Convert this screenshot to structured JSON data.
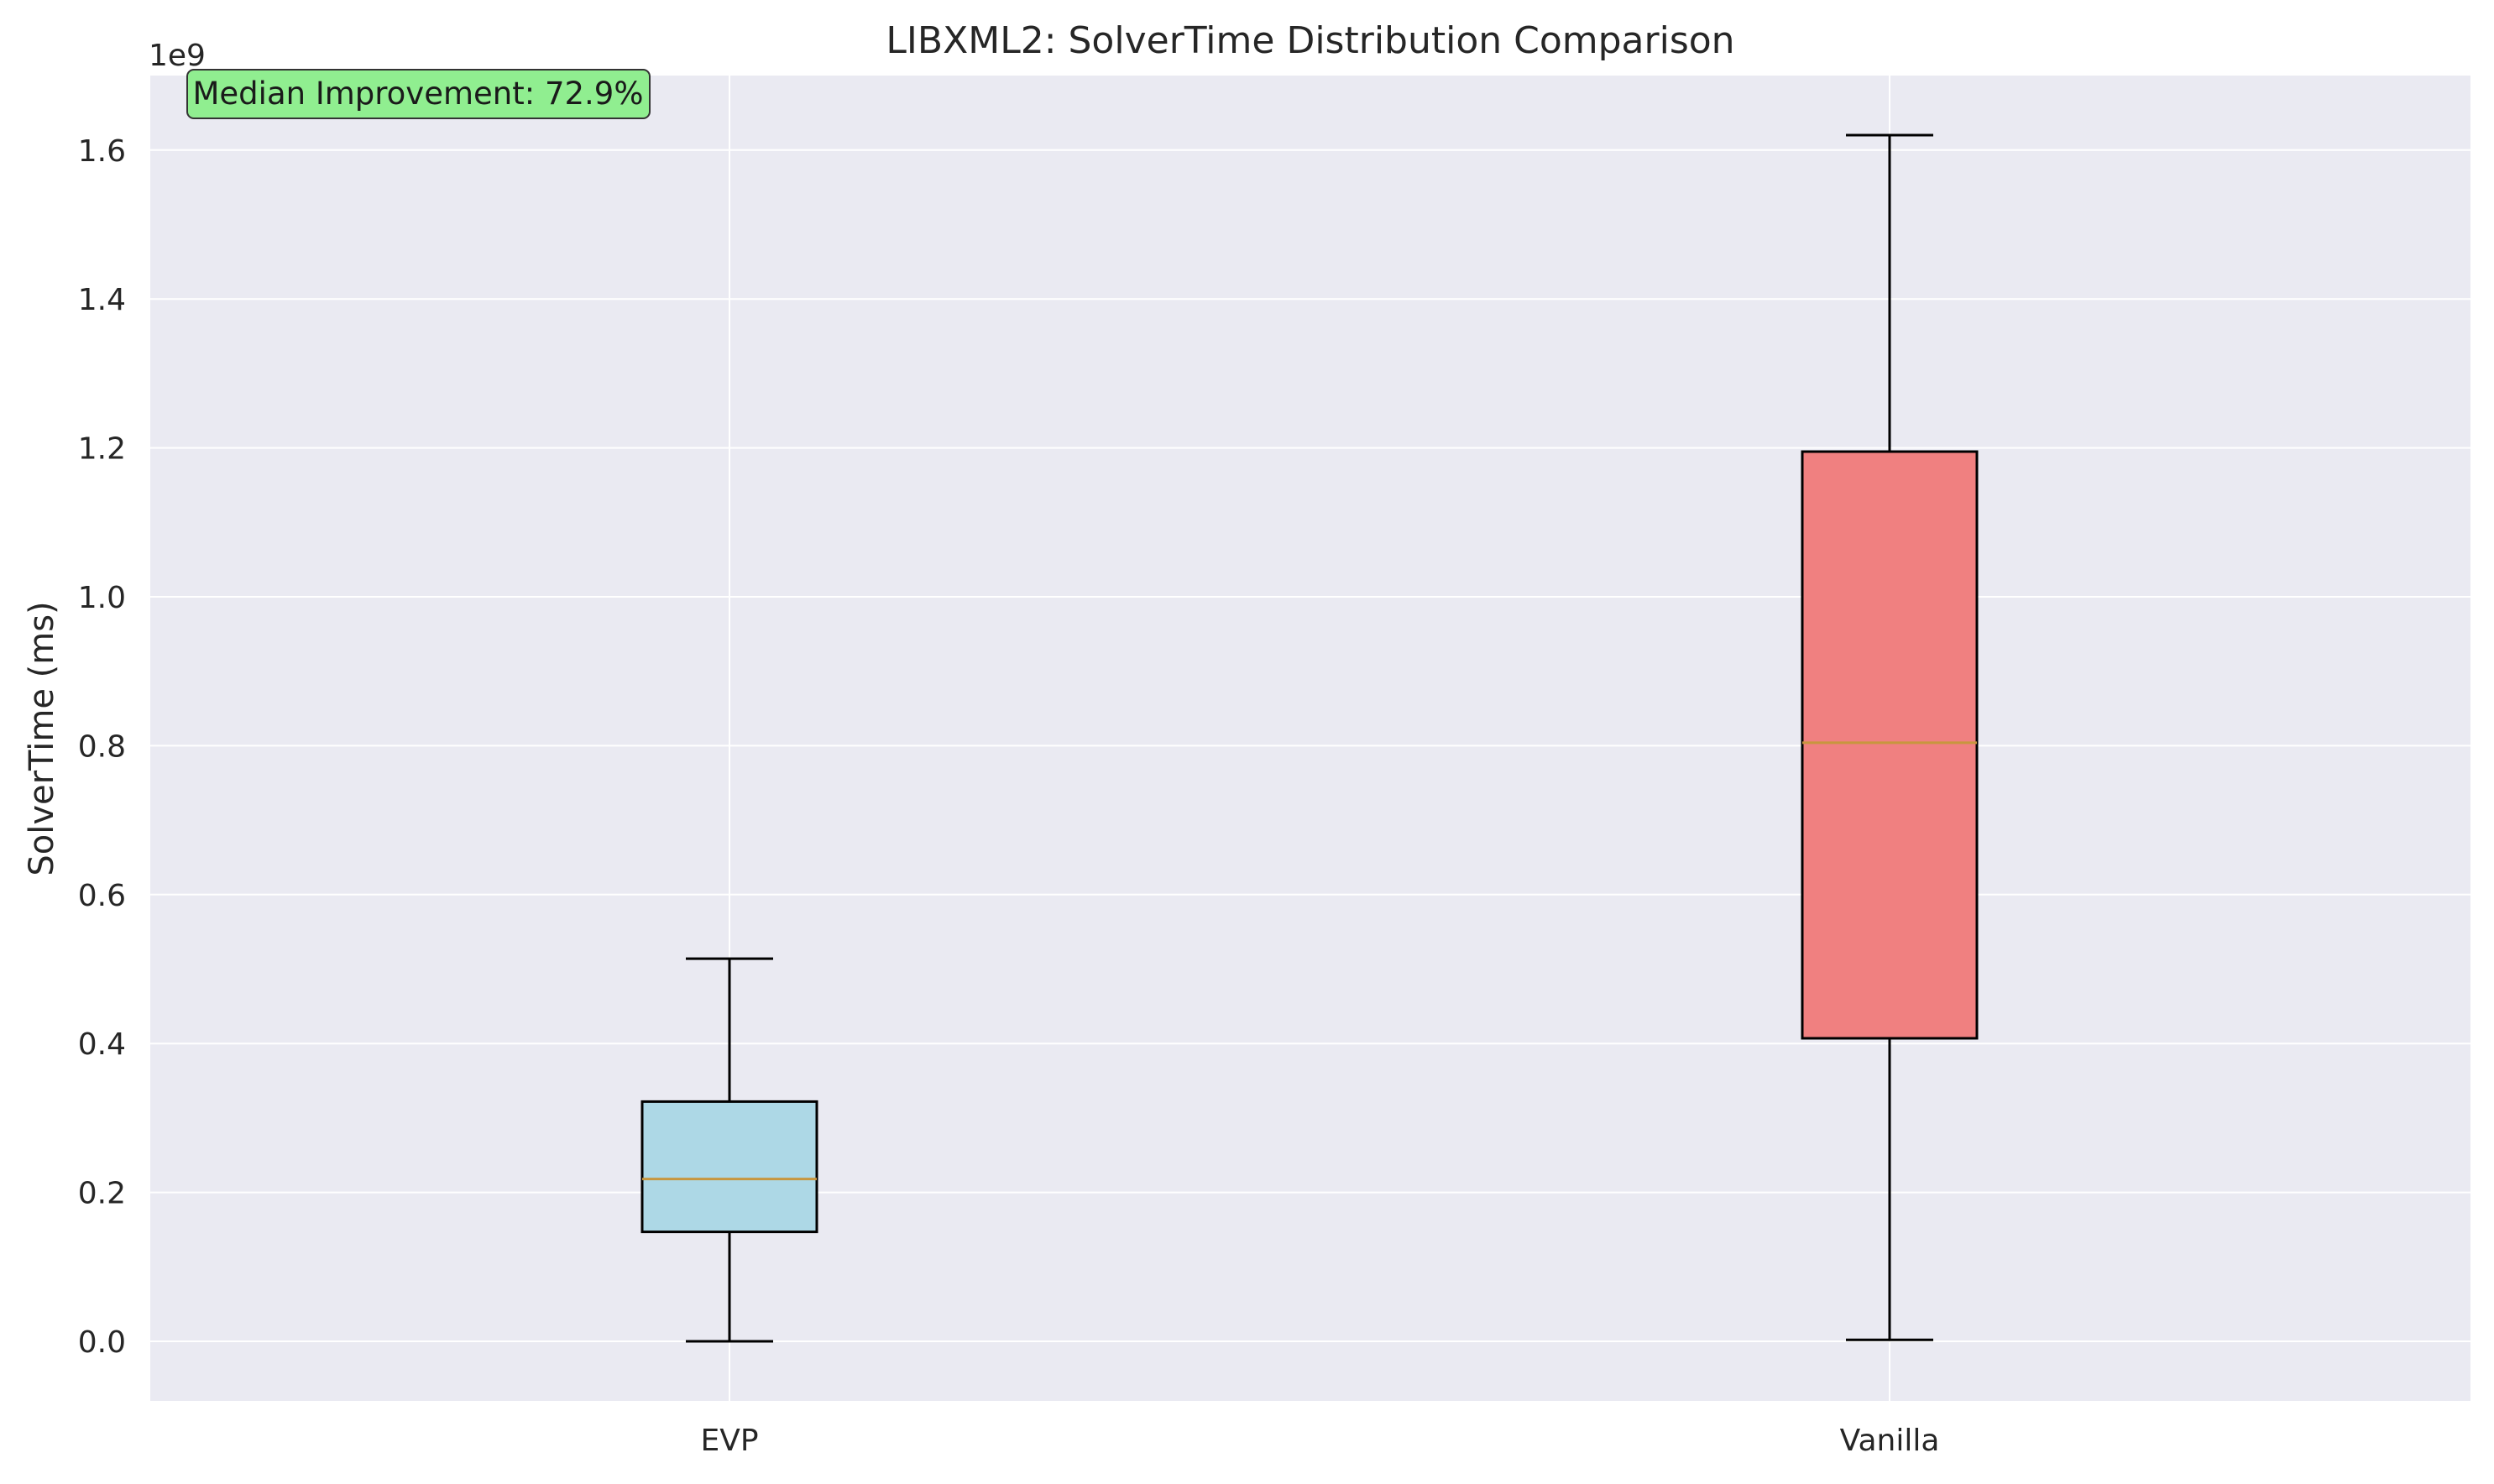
{
  "chart_data": {
    "type": "box",
    "title": "LIBXML2: SolverTime Distribution Comparison",
    "ylabel": "SolverTime (ms)",
    "xlabel": "",
    "y_offset_label": "1e9",
    "ylim": [
      -80000000,
      1700000000
    ],
    "yticks": [
      0,
      200000000,
      400000000,
      600000000,
      800000000,
      1000000000,
      1200000000,
      1400000000,
      1600000000
    ],
    "ytick_labels": [
      "0.0",
      "0.2",
      "0.4",
      "0.6",
      "0.8",
      "1.0",
      "1.2",
      "1.4",
      "1.6"
    ],
    "grid": true,
    "categories": [
      "EVP",
      "Vanilla"
    ],
    "boxes": [
      {
        "name": "EVP",
        "whisker_low": 0,
        "q1": 147000000,
        "median": 218000000,
        "q3": 322000000,
        "whisker_high": 514000000,
        "color": "#add8e6"
      },
      {
        "name": "Vanilla",
        "whisker_low": 2000000,
        "q1": 407000000,
        "median": 804000000,
        "q3": 1195000000,
        "whisker_high": 1620000000,
        "color": "#f08080"
      }
    ],
    "median_color": "#c8963e",
    "plot_background": "#eaeaf2",
    "annotation": {
      "text": "Median Improvement: 72.9%",
      "background": "#90ee90"
    }
  }
}
